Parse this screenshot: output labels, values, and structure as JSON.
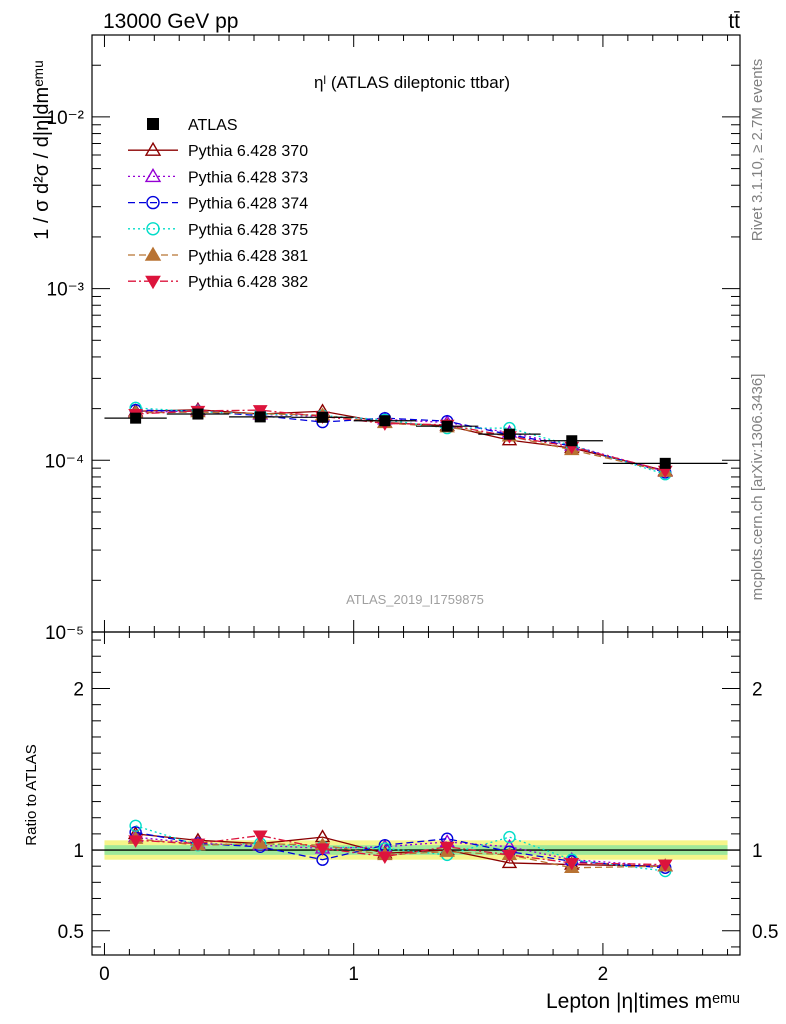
{
  "header": {
    "energy_label": "13000 GeV pp",
    "process_label": "tt̄"
  },
  "side_labels": {
    "rivet": "Rivet 3.1.10, ≥ 2.7M events",
    "mcplots": "mcplots.cern.ch [arXiv:1306.3436]"
  },
  "analysis_id": "ATLAS_2019_I1759875",
  "chart_data": [
    {
      "type": "line",
      "panel": "main",
      "title": "ηˡ (ATLAS dileptonic ttbar)",
      "ylabel": "1 / σ d²σ / d|η|dmᵉᵐᵘ",
      "yscale": "log",
      "ylim": [
        1e-05,
        0.03
      ],
      "xlim": [
        -0.05,
        2.55
      ],
      "x": [
        0.125,
        0.375,
        0.625,
        0.875,
        1.125,
        1.375,
        1.625,
        1.875,
        2.25
      ],
      "xerr": [
        0.125,
        0.125,
        0.125,
        0.125,
        0.125,
        0.125,
        0.125,
        0.125,
        0.25
      ],
      "y_tick_labels": [
        "10⁻⁵",
        "10⁻⁴",
        "10⁻³",
        "10⁻²"
      ],
      "legend_position": "top-left",
      "series": [
        {
          "name": "ATLAS",
          "color": "#000000",
          "marker": "square",
          "line": "none",
          "values": [
            0.000176,
            0.000186,
            0.000179,
            0.000178,
            0.00017,
            0.000158,
            0.000142,
            0.00013,
            9.6e-05
          ]
        },
        {
          "name": "Pythia 6.428 370",
          "color": "#8b0000",
          "marker": "triangle-open",
          "line": "solid",
          "values": [
            0.000193,
            0.000197,
            0.000186,
            0.000193,
            0.000166,
            0.000159,
            0.000131,
            0.000118,
            8.7e-05
          ]
        },
        {
          "name": "Pythia 6.428 373",
          "color": "#9400d3",
          "marker": "triangle-open",
          "line": "dotted",
          "values": [
            0.00019,
            0.000194,
            0.000185,
            0.00018,
            0.000173,
            0.000166,
            0.000145,
            0.000122,
            8.6e-05
          ]
        },
        {
          "name": "Pythia 6.428 374",
          "color": "#0000dd",
          "marker": "circle-open",
          "line": "dashed",
          "values": [
            0.000196,
            0.000193,
            0.000182,
            0.000167,
            0.000176,
            0.000169,
            0.000141,
            0.000121,
            8.5e-05
          ]
        },
        {
          "name": "Pythia 6.428 375",
          "color": "#00dcc8",
          "marker": "circle-open",
          "line": "dotted",
          "values": [
            0.000202,
            0.000192,
            0.000186,
            0.000182,
            0.000172,
            0.000154,
            0.000154,
            0.000122,
            8.3e-05
          ]
        },
        {
          "name": "Pythia 6.428 381",
          "color": "#b87333",
          "marker": "triangle-filled",
          "line": "dashed",
          "values": [
            0.000189,
            0.000191,
            0.000187,
            0.000183,
            0.000165,
            0.000156,
            0.000138,
            0.000115,
            8.6e-05
          ]
        },
        {
          "name": "Pythia 6.428 382",
          "color": "#dc143c",
          "marker": "triangle-down-filled",
          "line": "dashdot",
          "values": [
            0.000186,
            0.000194,
            0.000196,
            0.00018,
            0.000164,
            0.000161,
            0.000138,
            0.00012,
            8.7e-05
          ]
        }
      ]
    },
    {
      "type": "line",
      "panel": "ratio",
      "ylabel": "Ratio to ATLAS",
      "xlabel": "Lepton |η|times mᵉᵐᵘ",
      "ylim": [
        0.35,
        2.35
      ],
      "xlim": [
        -0.05,
        2.55
      ],
      "x": [
        0.125,
        0.375,
        0.625,
        0.875,
        1.125,
        1.375,
        1.625,
        1.875,
        2.25
      ],
      "x_tick_labels": [
        "0",
        "1",
        "2"
      ],
      "y_tick_labels": [
        "0.5",
        "1",
        "2"
      ],
      "reference_band": {
        "inner": [
          0.97,
          1.03
        ],
        "outer": [
          0.94,
          1.06
        ]
      },
      "series": [
        {
          "name": "Pythia 6.428 370",
          "values": [
            1.1,
            1.06,
            1.04,
            1.08,
            0.98,
            1.0,
            0.92,
            0.91,
            0.9
          ]
        },
        {
          "name": "Pythia 6.428 373",
          "values": [
            1.08,
            1.04,
            1.03,
            1.01,
            1.02,
            1.05,
            1.02,
            0.94,
            0.9
          ]
        },
        {
          "name": "Pythia 6.428 374",
          "values": [
            1.11,
            1.04,
            1.02,
            0.94,
            1.03,
            1.07,
            0.99,
            0.93,
            0.89
          ]
        },
        {
          "name": "Pythia 6.428 375",
          "values": [
            1.15,
            1.03,
            1.04,
            1.02,
            1.01,
            0.97,
            1.08,
            0.94,
            0.87
          ]
        },
        {
          "name": "Pythia 6.428 381",
          "values": [
            1.07,
            1.03,
            1.04,
            1.03,
            0.97,
            0.99,
            0.97,
            0.89,
            0.9
          ]
        },
        {
          "name": "Pythia 6.428 382",
          "values": [
            1.06,
            1.04,
            1.09,
            1.01,
            0.96,
            1.02,
            0.97,
            0.92,
            0.91
          ]
        }
      ]
    }
  ]
}
